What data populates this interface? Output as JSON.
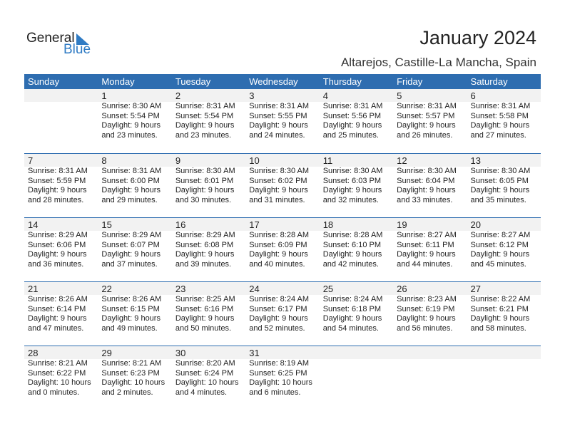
{
  "logo": {
    "text1": "General",
    "text2": "Blue"
  },
  "title": "January 2024",
  "location": "Altarejos, Castille-La Mancha, Spain",
  "colors": {
    "header": "#2e6db0",
    "band": "#f2f2f2"
  },
  "days_of_week": [
    "Sunday",
    "Monday",
    "Tuesday",
    "Wednesday",
    "Thursday",
    "Friday",
    "Saturday"
  ],
  "weeks": [
    [
      null,
      {
        "day": "1",
        "sunrise": "Sunrise: 8:30 AM",
        "sunset": "Sunset: 5:54 PM",
        "daylight1": "Daylight: 9 hours",
        "daylight2": "and 23 minutes."
      },
      {
        "day": "2",
        "sunrise": "Sunrise: 8:31 AM",
        "sunset": "Sunset: 5:54 PM",
        "daylight1": "Daylight: 9 hours",
        "daylight2": "and 23 minutes."
      },
      {
        "day": "3",
        "sunrise": "Sunrise: 8:31 AM",
        "sunset": "Sunset: 5:55 PM",
        "daylight1": "Daylight: 9 hours",
        "daylight2": "and 24 minutes."
      },
      {
        "day": "4",
        "sunrise": "Sunrise: 8:31 AM",
        "sunset": "Sunset: 5:56 PM",
        "daylight1": "Daylight: 9 hours",
        "daylight2": "and 25 minutes."
      },
      {
        "day": "5",
        "sunrise": "Sunrise: 8:31 AM",
        "sunset": "Sunset: 5:57 PM",
        "daylight1": "Daylight: 9 hours",
        "daylight2": "and 26 minutes."
      },
      {
        "day": "6",
        "sunrise": "Sunrise: 8:31 AM",
        "sunset": "Sunset: 5:58 PM",
        "daylight1": "Daylight: 9 hours",
        "daylight2": "and 27 minutes."
      }
    ],
    [
      {
        "day": "7",
        "sunrise": "Sunrise: 8:31 AM",
        "sunset": "Sunset: 5:59 PM",
        "daylight1": "Daylight: 9 hours",
        "daylight2": "and 28 minutes."
      },
      {
        "day": "8",
        "sunrise": "Sunrise: 8:31 AM",
        "sunset": "Sunset: 6:00 PM",
        "daylight1": "Daylight: 9 hours",
        "daylight2": "and 29 minutes."
      },
      {
        "day": "9",
        "sunrise": "Sunrise: 8:30 AM",
        "sunset": "Sunset: 6:01 PM",
        "daylight1": "Daylight: 9 hours",
        "daylight2": "and 30 minutes."
      },
      {
        "day": "10",
        "sunrise": "Sunrise: 8:30 AM",
        "sunset": "Sunset: 6:02 PM",
        "daylight1": "Daylight: 9 hours",
        "daylight2": "and 31 minutes."
      },
      {
        "day": "11",
        "sunrise": "Sunrise: 8:30 AM",
        "sunset": "Sunset: 6:03 PM",
        "daylight1": "Daylight: 9 hours",
        "daylight2": "and 32 minutes."
      },
      {
        "day": "12",
        "sunrise": "Sunrise: 8:30 AM",
        "sunset": "Sunset: 6:04 PM",
        "daylight1": "Daylight: 9 hours",
        "daylight2": "and 33 minutes."
      },
      {
        "day": "13",
        "sunrise": "Sunrise: 8:30 AM",
        "sunset": "Sunset: 6:05 PM",
        "daylight1": "Daylight: 9 hours",
        "daylight2": "and 35 minutes."
      }
    ],
    [
      {
        "day": "14",
        "sunrise": "Sunrise: 8:29 AM",
        "sunset": "Sunset: 6:06 PM",
        "daylight1": "Daylight: 9 hours",
        "daylight2": "and 36 minutes."
      },
      {
        "day": "15",
        "sunrise": "Sunrise: 8:29 AM",
        "sunset": "Sunset: 6:07 PM",
        "daylight1": "Daylight: 9 hours",
        "daylight2": "and 37 minutes."
      },
      {
        "day": "16",
        "sunrise": "Sunrise: 8:29 AM",
        "sunset": "Sunset: 6:08 PM",
        "daylight1": "Daylight: 9 hours",
        "daylight2": "and 39 minutes."
      },
      {
        "day": "17",
        "sunrise": "Sunrise: 8:28 AM",
        "sunset": "Sunset: 6:09 PM",
        "daylight1": "Daylight: 9 hours",
        "daylight2": "and 40 minutes."
      },
      {
        "day": "18",
        "sunrise": "Sunrise: 8:28 AM",
        "sunset": "Sunset: 6:10 PM",
        "daylight1": "Daylight: 9 hours",
        "daylight2": "and 42 minutes."
      },
      {
        "day": "19",
        "sunrise": "Sunrise: 8:27 AM",
        "sunset": "Sunset: 6:11 PM",
        "daylight1": "Daylight: 9 hours",
        "daylight2": "and 44 minutes."
      },
      {
        "day": "20",
        "sunrise": "Sunrise: 8:27 AM",
        "sunset": "Sunset: 6:12 PM",
        "daylight1": "Daylight: 9 hours",
        "daylight2": "and 45 minutes."
      }
    ],
    [
      {
        "day": "21",
        "sunrise": "Sunrise: 8:26 AM",
        "sunset": "Sunset: 6:14 PM",
        "daylight1": "Daylight: 9 hours",
        "daylight2": "and 47 minutes."
      },
      {
        "day": "22",
        "sunrise": "Sunrise: 8:26 AM",
        "sunset": "Sunset: 6:15 PM",
        "daylight1": "Daylight: 9 hours",
        "daylight2": "and 49 minutes."
      },
      {
        "day": "23",
        "sunrise": "Sunrise: 8:25 AM",
        "sunset": "Sunset: 6:16 PM",
        "daylight1": "Daylight: 9 hours",
        "daylight2": "and 50 minutes."
      },
      {
        "day": "24",
        "sunrise": "Sunrise: 8:24 AM",
        "sunset": "Sunset: 6:17 PM",
        "daylight1": "Daylight: 9 hours",
        "daylight2": "and 52 minutes."
      },
      {
        "day": "25",
        "sunrise": "Sunrise: 8:24 AM",
        "sunset": "Sunset: 6:18 PM",
        "daylight1": "Daylight: 9 hours",
        "daylight2": "and 54 minutes."
      },
      {
        "day": "26",
        "sunrise": "Sunrise: 8:23 AM",
        "sunset": "Sunset: 6:19 PM",
        "daylight1": "Daylight: 9 hours",
        "daylight2": "and 56 minutes."
      },
      {
        "day": "27",
        "sunrise": "Sunrise: 8:22 AM",
        "sunset": "Sunset: 6:21 PM",
        "daylight1": "Daylight: 9 hours",
        "daylight2": "and 58 minutes."
      }
    ],
    [
      {
        "day": "28",
        "sunrise": "Sunrise: 8:21 AM",
        "sunset": "Sunset: 6:22 PM",
        "daylight1": "Daylight: 10 hours",
        "daylight2": "and 0 minutes."
      },
      {
        "day": "29",
        "sunrise": "Sunrise: 8:21 AM",
        "sunset": "Sunset: 6:23 PM",
        "daylight1": "Daylight: 10 hours",
        "daylight2": "and 2 minutes."
      },
      {
        "day": "30",
        "sunrise": "Sunrise: 8:20 AM",
        "sunset": "Sunset: 6:24 PM",
        "daylight1": "Daylight: 10 hours",
        "daylight2": "and 4 minutes."
      },
      {
        "day": "31",
        "sunrise": "Sunrise: 8:19 AM",
        "sunset": "Sunset: 6:25 PM",
        "daylight1": "Daylight: 10 hours",
        "daylight2": "and 6 minutes."
      },
      null,
      null,
      null
    ]
  ]
}
